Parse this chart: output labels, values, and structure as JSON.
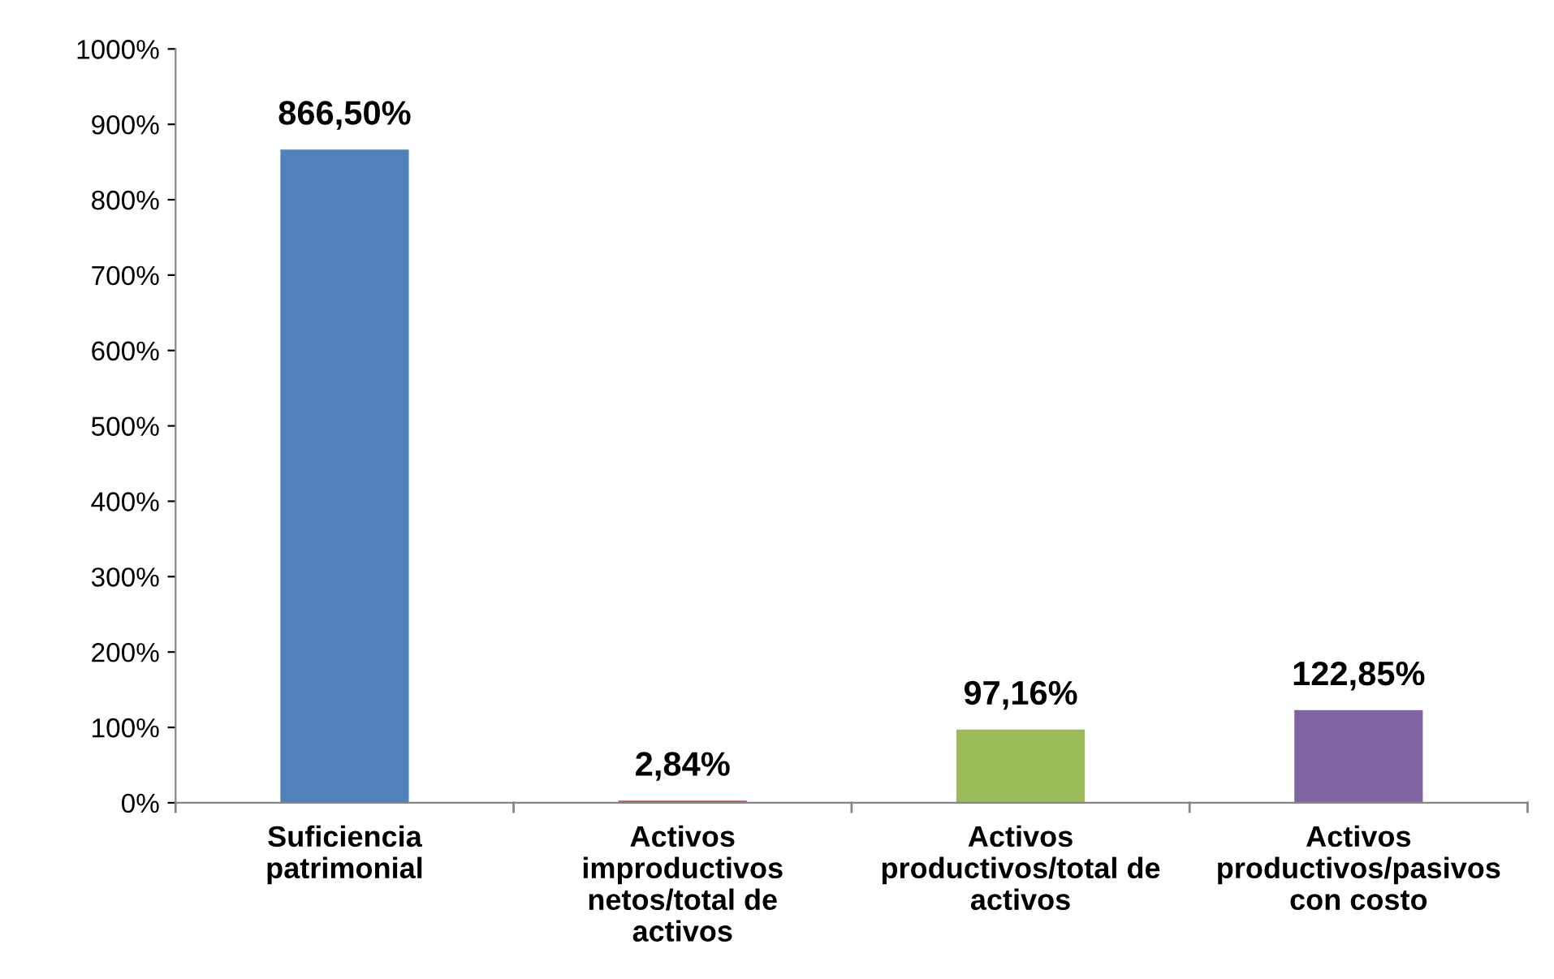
{
  "chart_data": {
    "type": "bar",
    "categories": [
      "Suficiencia patrimonial",
      "Activos improductivos netos/total de activos",
      "Activos productivos/total de activos",
      "Activos productivos/pasivos con costo"
    ],
    "values": [
      866.5,
      2.84,
      97.16,
      122.85
    ],
    "colors": [
      "#4f81bd",
      "#c0504d",
      "#9bbb59",
      "#8064a2"
    ],
    "value_labels": [
      "866,50%",
      "2,84%",
      "97,16%",
      "122,85%"
    ],
    "ylim": [
      0,
      1000
    ],
    "yticks": [
      {
        "value": 0,
        "label": "0%"
      },
      {
        "value": 100,
        "label": "100%"
      },
      {
        "value": 200,
        "label": "200%"
      },
      {
        "value": 300,
        "label": "300%"
      },
      {
        "value": 400,
        "label": "400%"
      },
      {
        "value": 500,
        "label": "500%"
      },
      {
        "value": 600,
        "label": "600%"
      },
      {
        "value": 700,
        "label": "700%"
      },
      {
        "value": 800,
        "label": "800%"
      },
      {
        "value": 900,
        "label": "900%"
      },
      {
        "value": 1000,
        "label": "1000%"
      }
    ],
    "grid": false,
    "legend": false
  }
}
